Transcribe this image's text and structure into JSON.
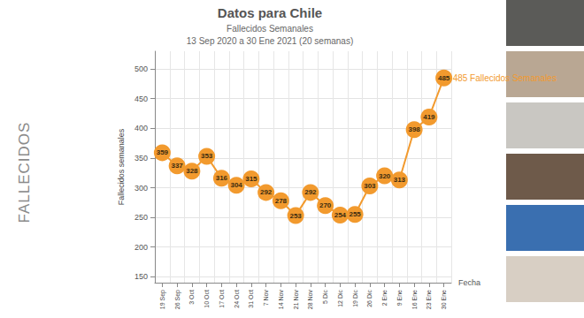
{
  "slide_label": "FALLECIDOS",
  "chart_data": {
    "type": "line",
    "title": "Datos para Chile",
    "subtitle": [
      "Fallecidos Semanales",
      "13 Sep 2020 a 30 Ene 2021 (20 semanas)"
    ],
    "x_label": "Fecha",
    "y_label": "Fallecidos semanales",
    "categories": [
      "19 Sep",
      "26 Sep",
      "3 Oct",
      "10 Oct",
      "17 Oct",
      "24 Oct",
      "31 Oct",
      "7 Nov",
      "14 Nov",
      "21 Nov",
      "28 Nov",
      "5 Dic",
      "12 Dic",
      "19 Dic",
      "26 Dic",
      "2 Ene",
      "9 Ene",
      "16 Ene",
      "23 Ene",
      "30 Ene"
    ],
    "values": [
      359,
      337,
      328,
      353,
      316,
      304,
      315,
      292,
      278,
      253,
      292,
      270,
      254,
      255,
      303,
      320,
      313,
      398,
      419,
      485
    ],
    "color": "#f29a2e",
    "marker": "circle",
    "line_style": "solid",
    "data_labels": true,
    "annotation": "485 Fallecidos Semanales",
    "ylim": [
      140,
      530
    ],
    "yticks": [
      150,
      200,
      250,
      300,
      350,
      400,
      450,
      500
    ],
    "grid": true
  }
}
